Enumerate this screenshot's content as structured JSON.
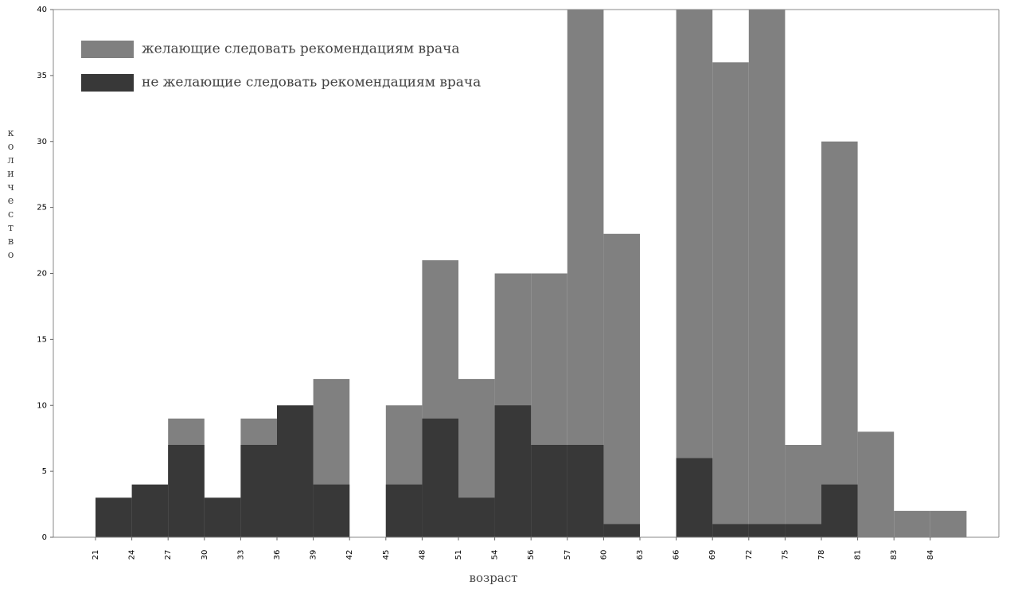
{
  "chart_data": {
    "type": "bar",
    "x_label": "возраст",
    "y_label": "количество",
    "categories": [
      "21",
      "24",
      "27",
      "30",
      "33",
      "36",
      "39",
      "42",
      "45",
      "48",
      "51",
      "54",
      "56",
      "57",
      "60",
      "63",
      "66",
      "69",
      "72",
      "75",
      "78",
      "81",
      "83",
      "84"
    ],
    "series": [
      {
        "name": "желающие следовать рекомендациям врача",
        "color": "#808080",
        "values": [
          0,
          0,
          9,
          0,
          9,
          0,
          12,
          0,
          10,
          21,
          12,
          20,
          20,
          40,
          23,
          0,
          40,
          36,
          40,
          7,
          30,
          8,
          2,
          2
        ]
      },
      {
        "name": "не желающие следовать рекомендациям врача",
        "color": "#383838",
        "values": [
          3,
          4,
          7,
          3,
          7,
          10,
          4,
          0,
          4,
          9,
          3,
          10,
          7,
          7,
          1,
          0,
          6,
          1,
          1,
          1,
          4,
          0,
          0,
          0
        ]
      }
    ],
    "ylim": [
      0,
      40
    ],
    "yticks": [
      0,
      5,
      10,
      15,
      20,
      25,
      30,
      35,
      40
    ],
    "legend": "upper left"
  }
}
